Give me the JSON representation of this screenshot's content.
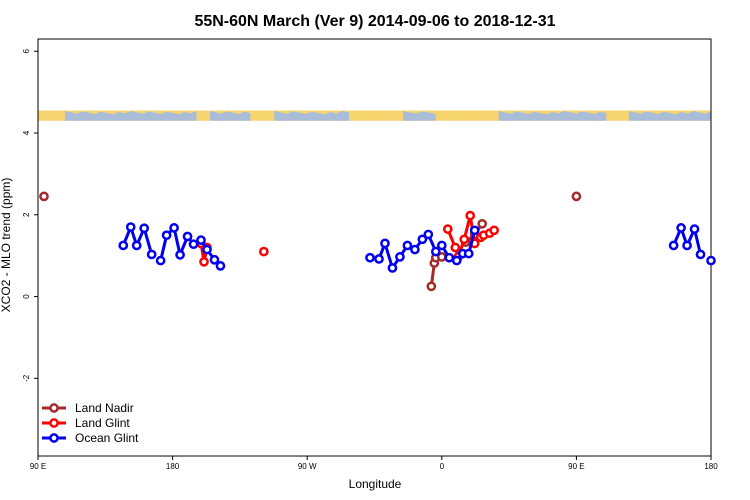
{
  "chart_data": {
    "type": "line",
    "title": "55N-60N March (Ver 9)   2014-09-06 to 2018-12-31",
    "xlabel": "Longitude",
    "ylabel": "XCO2 - MLO trend (ppm)",
    "x_ticks": [
      {
        "value": 90,
        "label": "90 E"
      },
      {
        "value": 180,
        "label": "180"
      },
      {
        "value": 270,
        "label": "90 W"
      },
      {
        "value": 360,
        "label": "0"
      },
      {
        "value": 450,
        "label": "90 E"
      },
      {
        "value": 540,
        "label": "180"
      }
    ],
    "y_ticks": [
      {
        "value": -2,
        "label": "-2"
      },
      {
        "value": 0,
        "label": "0"
      },
      {
        "value": 2,
        "label": "2"
      },
      {
        "value": 4,
        "label": "4"
      },
      {
        "value": 6,
        "label": "6"
      }
    ],
    "xlim": [
      90,
      540
    ],
    "ylim": [
      -3.9,
      6.3
    ],
    "map_band": {
      "y_range": [
        4.3,
        4.55
      ],
      "ocean_color": "#a9bdd8",
      "land_color": "#f7d56e"
    },
    "legend_position": "bottom-left",
    "series": [
      {
        "name": "Land Nadir",
        "color": "#a52a2a",
        "segments": [
          [
            [
              94,
              2.45
            ]
          ],
          [
            [
              353,
              0.25
            ],
            [
              355,
              0.82
            ]
          ],
          [
            [
              356,
              0.95
            ],
            [
              360,
              0.97
            ]
          ],
          [
            [
              376,
              1.33
            ],
            [
              382,
              1.52
            ],
            [
              387,
              1.78
            ]
          ],
          [
            [
              450,
              2.45
            ]
          ]
        ]
      },
      {
        "name": "Land Glint",
        "color": "#ff0000",
        "segments": [
          [
            [
              199,
              1.3
            ],
            [
              201,
              0.85
            ],
            [
              203,
              1.2
            ]
          ],
          [
            [
              241,
              1.1
            ]
          ],
          [
            [
              364,
              1.65
            ],
            [
              369,
              1.2
            ],
            [
              371,
              0.97
            ],
            [
              375,
              1.4
            ],
            [
              379,
              1.98
            ],
            [
              382,
              1.3
            ],
            [
              386,
              1.45
            ],
            [
              388,
              1.5
            ],
            [
              392,
              1.55
            ],
            [
              395,
              1.62
            ]
          ]
        ]
      },
      {
        "name": "Ocean Glint",
        "color": "#0000ee",
        "segments": [
          [
            [
              147,
              1.25
            ],
            [
              152,
              1.7
            ],
            [
              156,
              1.25
            ],
            [
              161,
              1.67
            ],
            [
              166,
              1.03
            ]
          ],
          [
            [
              172,
              0.88
            ],
            [
              176,
              1.5
            ],
            [
              181,
              1.68
            ],
            [
              185,
              1.02
            ],
            [
              190,
              1.47
            ],
            [
              194,
              1.28
            ],
            [
              199,
              1.38
            ],
            [
              203,
              1.15
            ],
            [
              208,
              0.9
            ],
            [
              212,
              0.75
            ]
          ],
          [
            [
              312,
              0.95
            ],
            [
              318,
              0.92
            ],
            [
              322,
              1.3
            ],
            [
              327,
              0.7
            ],
            [
              332,
              0.97
            ],
            [
              337,
              1.25
            ],
            [
              342,
              1.15
            ],
            [
              347,
              1.4
            ],
            [
              351,
              1.52
            ],
            [
              356,
              1.1
            ],
            [
              360,
              1.25
            ],
            [
              365,
              0.95
            ],
            [
              370,
              0.88
            ],
            [
              374,
              1.05
            ],
            [
              378,
              1.05
            ],
            [
              382,
              1.62
            ]
          ],
          [
            [
              515,
              1.25
            ],
            [
              520,
              1.68
            ],
            [
              524,
              1.25
            ],
            [
              529,
              1.65
            ],
            [
              533,
              1.03
            ]
          ],
          [
            [
              540,
              0.88
            ]
          ]
        ]
      }
    ]
  }
}
